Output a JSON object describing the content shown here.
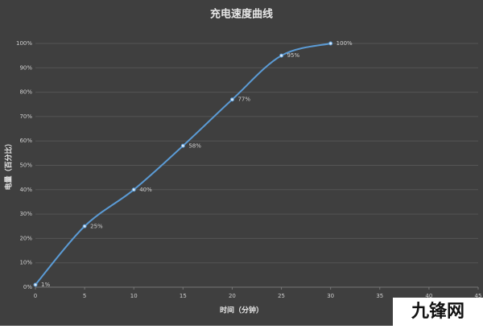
{
  "chart_data": {
    "type": "line",
    "title": "充电速度曲线",
    "x_label": "时间（分钟）",
    "y_label": "电量（百分比）",
    "x": [
      0,
      5,
      10,
      15,
      20,
      25,
      30
    ],
    "series": [
      {
        "name": "电量",
        "color": "#5b9bd5",
        "values": [
          1,
          25,
          40,
          58,
          77,
          95,
          100
        ],
        "value_labels": [
          "1%",
          "25%",
          "40%",
          "58%",
          "77%",
          "95%",
          "100%"
        ]
      }
    ],
    "xlim": [
      0,
      45
    ],
    "xticks": [
      0,
      5,
      10,
      15,
      20,
      25,
      30,
      35,
      40,
      45
    ],
    "ylim": [
      0,
      100
    ],
    "yticks": [
      {
        "value": 0,
        "label": "0%"
      },
      {
        "value": 10,
        "label": "10%"
      },
      {
        "value": 20,
        "label": "20%"
      },
      {
        "value": 30,
        "label": "30%"
      },
      {
        "value": 40,
        "label": "40%"
      },
      {
        "value": 50,
        "label": "50%"
      },
      {
        "value": 60,
        "label": "60%"
      },
      {
        "value": 70,
        "label": "70%"
      },
      {
        "value": 80,
        "label": "80%"
      },
      {
        "value": 90,
        "label": "90%"
      },
      {
        "value": 100,
        "label": "100%"
      }
    ],
    "grid": true,
    "smooth": true
  },
  "watermark": "九锋网"
}
